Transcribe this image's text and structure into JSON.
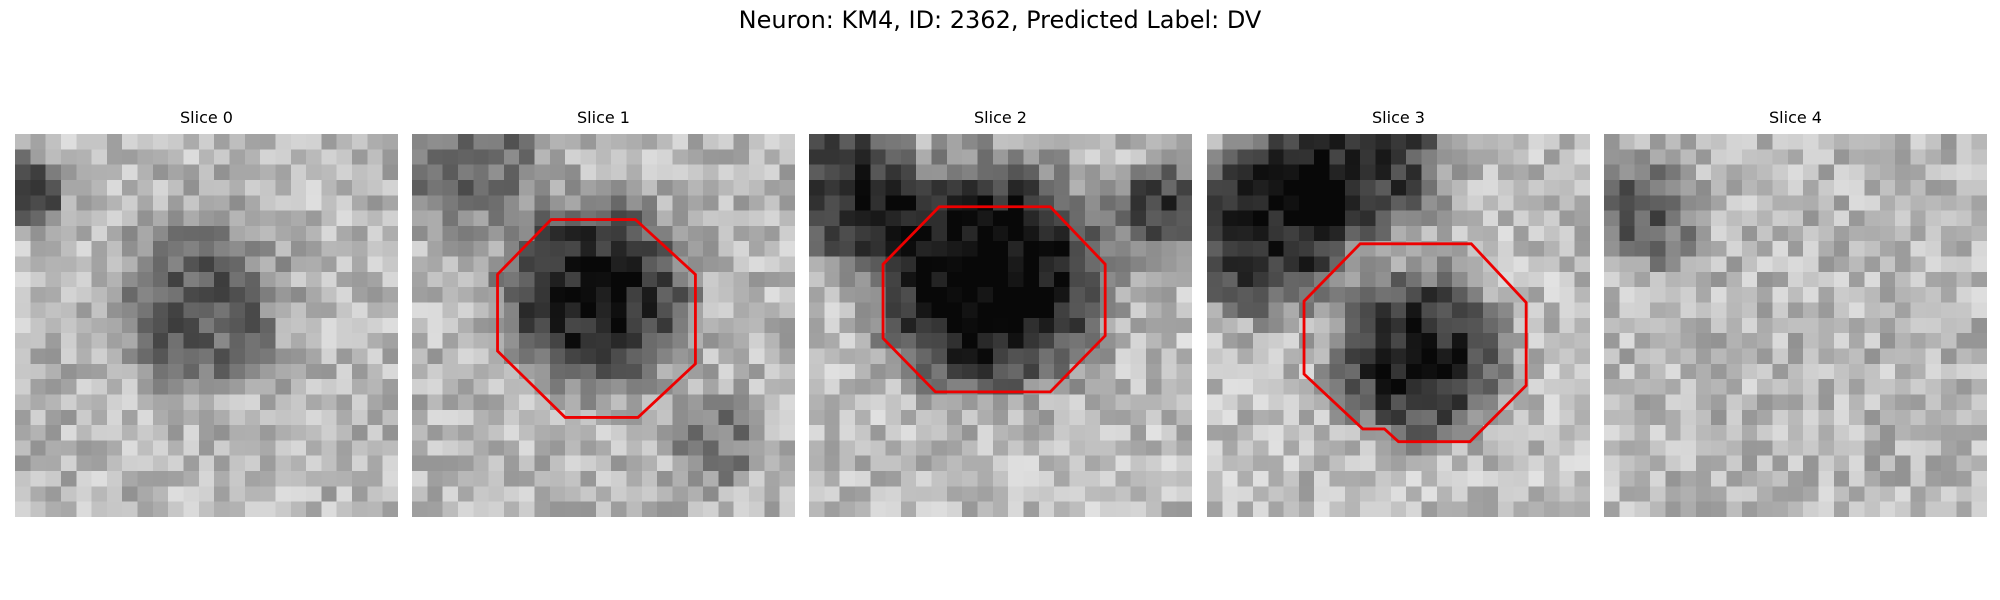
{
  "title": "Neuron: KM4, ID: 2362, Predicted Label: DV",
  "panels": [
    {
      "title": "Slice 0"
    },
    {
      "title": "Slice 1"
    },
    {
      "title": "Slice 2"
    },
    {
      "title": "Slice 3"
    },
    {
      "title": "Slice 4"
    }
  ]
}
